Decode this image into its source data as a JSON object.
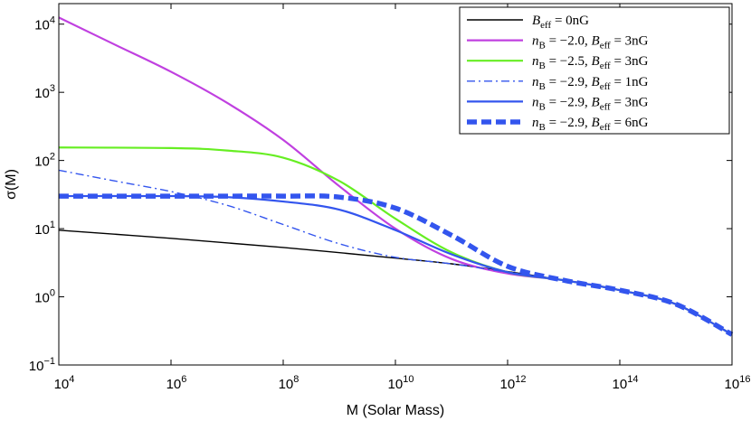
{
  "chart_data": {
    "type": "line",
    "title": "",
    "xlabel": "M (Solar Mass)",
    "ylabel": "σ(M)",
    "xscale": "log",
    "yscale": "log",
    "xlim": [
      10000.0,
      1e+16
    ],
    "ylim": [
      0.1,
      20000
    ],
    "xticks": [
      {
        "base": "10",
        "exp": "4",
        "value": 10000.0
      },
      {
        "base": "10",
        "exp": "6",
        "value": 1000000.0
      },
      {
        "base": "10",
        "exp": "8",
        "value": 100000000.0
      },
      {
        "base": "10",
        "exp": "10",
        "value": 10000000000.0
      },
      {
        "base": "10",
        "exp": "12",
        "value": 1000000000000.0
      },
      {
        "base": "10",
        "exp": "14",
        "value": 100000000000000.0
      },
      {
        "base": "10",
        "exp": "16",
        "value": 1e+16
      }
    ],
    "yticks": [
      {
        "base": "10",
        "exp": "−1",
        "value": 0.1
      },
      {
        "base": "10",
        "exp": "0",
        "value": 1
      },
      {
        "base": "10",
        "exp": "1",
        "value": 10
      },
      {
        "base": "10",
        "exp": "2",
        "value": 100
      },
      {
        "base": "10",
        "exp": "3",
        "value": 1000
      },
      {
        "base": "10",
        "exp": "4",
        "value": 10000
      }
    ],
    "legend_position": "top-right",
    "series": [
      {
        "name": "B_eff = 0nG",
        "color": "#000000",
        "style": "solid",
        "weight": "thin",
        "points": [
          [
            10000.0,
            9.5
          ],
          [
            1000000.0,
            7.2
          ],
          [
            100000000.0,
            5.3
          ],
          [
            10000000000.0,
            3.7
          ],
          [
            100000000000.0,
            3.05
          ],
          [
            1000000000000.0,
            2.35
          ],
          [
            10000000000000.0,
            1.75
          ],
          [
            100000000000000.0,
            1.25
          ],
          [
            1000000000000000.0,
            0.78
          ],
          [
            1e+16,
            0.28
          ]
        ]
      },
      {
        "name": "n_B = −2.0, B_eff = 3nG",
        "color": "#c040e0",
        "style": "solid",
        "weight": "normal",
        "points": [
          [
            10000.0,
            12500
          ],
          [
            100000.0,
            5000
          ],
          [
            1000000.0,
            2000
          ],
          [
            10000000.0,
            700
          ],
          [
            100000000.0,
            200
          ],
          [
            1000000000.0,
            42
          ],
          [
            10000000000.0,
            10
          ],
          [
            100000000000.0,
            3.6
          ],
          [
            1000000000000.0,
            2.2
          ],
          [
            10000000000000.0,
            1.75
          ],
          [
            100000000000000.0,
            1.25
          ],
          [
            1000000000000000.0,
            0.78
          ],
          [
            1e+16,
            0.28
          ]
        ]
      },
      {
        "name": "n_B = −2.5, B_eff = 3nG",
        "color": "#66ee22",
        "style": "solid",
        "weight": "normal",
        "points": [
          [
            10000.0,
            155
          ],
          [
            1000000.0,
            152
          ],
          [
            10000000.0,
            140
          ],
          [
            100000000.0,
            110
          ],
          [
            1000000000.0,
            50
          ],
          [
            10000000000.0,
            14
          ],
          [
            100000000000.0,
            4.5
          ],
          [
            1000000000000.0,
            2.3
          ],
          [
            10000000000000.0,
            1.75
          ],
          [
            100000000000000.0,
            1.25
          ],
          [
            1000000000000000.0,
            0.78
          ],
          [
            1e+16,
            0.28
          ]
        ]
      },
      {
        "name": "n_B = −2.9, B_eff = 1nG",
        "color": "#3355ee",
        "style": "dashdot",
        "weight": "thin",
        "points": [
          [
            10000.0,
            72
          ],
          [
            100000.0,
            50
          ],
          [
            1000000.0,
            35
          ],
          [
            10000000.0,
            22
          ],
          [
            100000000.0,
            11.5
          ],
          [
            1000000000.0,
            6
          ],
          [
            10000000000.0,
            3.8
          ],
          [
            100000000000.0,
            3.05
          ],
          [
            1000000000000.0,
            2.3
          ],
          [
            10000000000000.0,
            1.75
          ],
          [
            100000000000000.0,
            1.25
          ],
          [
            1000000000000000.0,
            0.78
          ],
          [
            1e+16,
            0.28
          ]
        ]
      },
      {
        "name": "n_B = −2.9, B_eff = 3nG",
        "color": "#3355ee",
        "style": "solid",
        "weight": "normal",
        "points": [
          [
            10000.0,
            30
          ],
          [
            1000000.0,
            30
          ],
          [
            10000000.0,
            29
          ],
          [
            100000000.0,
            25
          ],
          [
            1000000000.0,
            19
          ],
          [
            10000000000.0,
            9.5
          ],
          [
            100000000000.0,
            4.2
          ],
          [
            1000000000000.0,
            2.3
          ],
          [
            10000000000000.0,
            1.75
          ],
          [
            100000000000000.0,
            1.25
          ],
          [
            1000000000000000.0,
            0.78
          ],
          [
            1e+16,
            0.28
          ]
        ]
      },
      {
        "name": "n_B = −2.9, B_eff = 6nG",
        "color": "#3355ee",
        "style": "dashed",
        "weight": "thick",
        "points": [
          [
            10000.0,
            30
          ],
          [
            1000000.0,
            30
          ],
          [
            10000000.0,
            30
          ],
          [
            100000000.0,
            30
          ],
          [
            1000000000.0,
            29
          ],
          [
            10000000000.0,
            20
          ],
          [
            100000000000.0,
            8
          ],
          [
            1000000000000.0,
            2.8
          ],
          [
            10000000000000.0,
            1.75
          ],
          [
            100000000000000.0,
            1.25
          ],
          [
            1000000000000000.0,
            0.78
          ],
          [
            1e+16,
            0.28
          ]
        ]
      }
    ],
    "legend": [
      {
        "pre": "",
        "n": "",
        "sep": "",
        "b": "B",
        "bsub": "eff",
        "eq": " = 0nG"
      },
      {
        "pre": "n",
        "n": "B",
        "sep": " = −2.0, ",
        "b": "B",
        "bsub": "eff",
        "eq": " = 3nG"
      },
      {
        "pre": "n",
        "n": "B",
        "sep": " = −2.5, ",
        "b": "B",
        "bsub": "eff",
        "eq": " = 3nG"
      },
      {
        "pre": "n",
        "n": "B",
        "sep": " = −2.9, ",
        "b": "B",
        "bsub": "eff",
        "eq": " = 1nG"
      },
      {
        "pre": "n",
        "n": "B",
        "sep": " = −2.9, ",
        "b": "B",
        "bsub": "eff",
        "eq": " = 3nG"
      },
      {
        "pre": "n",
        "n": "B",
        "sep": " = −2.9, ",
        "b": "B",
        "bsub": "eff",
        "eq": " = 6nG"
      }
    ]
  }
}
